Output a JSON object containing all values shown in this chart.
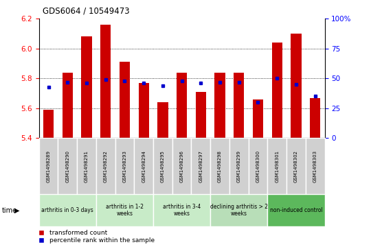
{
  "title": "GDS6064 / 10549473",
  "samples": [
    "GSM1498289",
    "GSM1498290",
    "GSM1498291",
    "GSM1498292",
    "GSM1498293",
    "GSM1498294",
    "GSM1498295",
    "GSM1498296",
    "GSM1498297",
    "GSM1498298",
    "GSM1498299",
    "GSM1498300",
    "GSM1498301",
    "GSM1498302",
    "GSM1498303"
  ],
  "transformed_counts": [
    5.59,
    5.84,
    6.08,
    6.16,
    5.91,
    5.77,
    5.64,
    5.84,
    5.71,
    5.84,
    5.84,
    5.66,
    6.04,
    6.1,
    5.67
  ],
  "percentile_ranks": [
    43,
    47,
    46,
    49,
    48,
    46,
    44,
    48,
    46,
    47,
    47,
    30,
    50,
    45,
    35
  ],
  "ylim_left": [
    5.4,
    6.2
  ],
  "ylim_right": [
    0,
    100
  ],
  "yticks_left": [
    5.4,
    5.6,
    5.8,
    6.0,
    6.2
  ],
  "yticks_right": [
    0,
    25,
    50,
    75,
    100
  ],
  "group_labels": [
    "arthritis in 0-3 days",
    "arthritis in 1-2\nweeks",
    "arthritis in 3-4\nweeks",
    "declining arthritis > 2\nweeks",
    "non-induced control"
  ],
  "group_starts": [
    0,
    3,
    6,
    9,
    12
  ],
  "group_ends": [
    3,
    6,
    9,
    12,
    15
  ],
  "group_colors": [
    "#c8ebc8",
    "#c8ebc8",
    "#c8ebc8",
    "#b8deb8",
    "#5cb85c"
  ],
  "bar_color": "#cc0000",
  "dot_color": "#0000cc",
  "bar_bottom": 5.4,
  "bar_width": 0.55,
  "legend_red": "transformed count",
  "legend_blue": "percentile rank within the sample",
  "time_label": "time",
  "cell_color": "#d0d0d0"
}
